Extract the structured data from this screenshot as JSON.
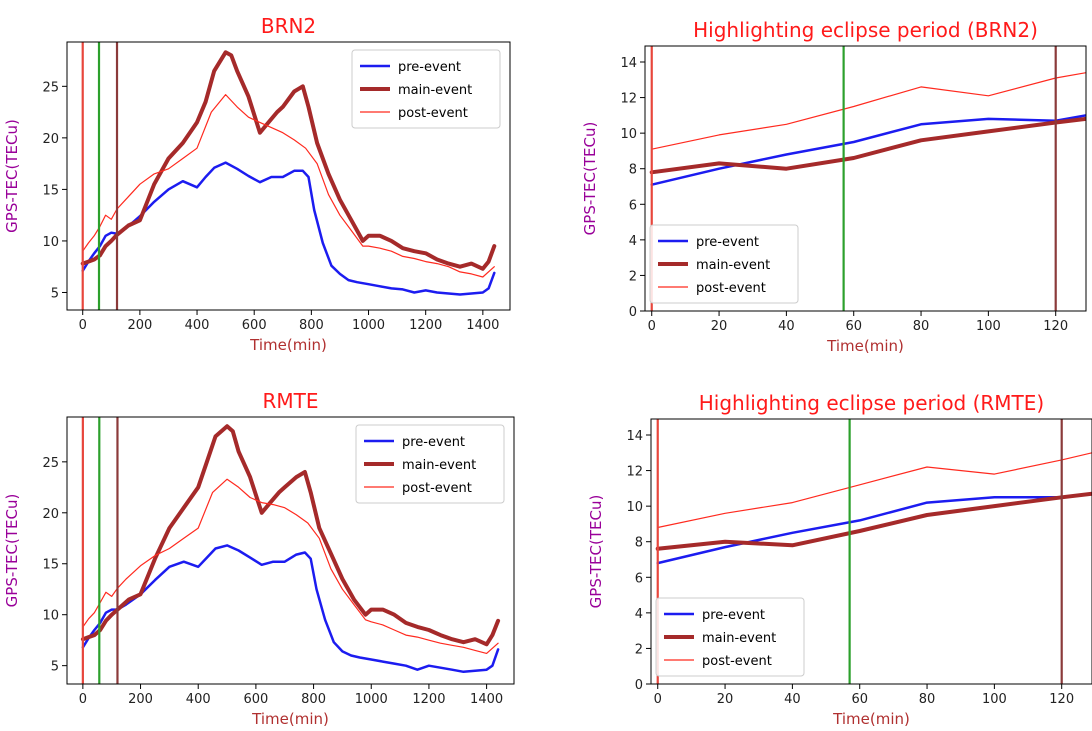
{
  "chart_data": [
    {
      "type": "line",
      "title": "BRN2",
      "xlabel": "Time(min)",
      "ylabel": "GPS-TEC(TECu)",
      "xlim": [
        -55,
        1495
      ],
      "ylim": [
        3.3,
        29.3
      ],
      "xticks": [
        0,
        200,
        400,
        600,
        800,
        1000,
        1200,
        1400
      ],
      "yticks": [
        5,
        10,
        15,
        20,
        25
      ],
      "vlines": [
        {
          "x": 0,
          "color": "#e8463c"
        },
        {
          "x": 57,
          "color": "#2ca02c"
        },
        {
          "x": 120,
          "color": "#8b3a3a"
        }
      ],
      "legend_position": "top-right",
      "series": [
        {
          "name": "pre-event",
          "color": "#1c1cf0",
          "width": 2.5,
          "x": [
            0,
            20,
            40,
            60,
            80,
            100,
            120,
            150,
            200,
            250,
            300,
            350,
            400,
            430,
            460,
            500,
            540,
            580,
            620,
            660,
            700,
            740,
            770,
            790,
            810,
            840,
            870,
            900,
            930,
            960,
            1000,
            1040,
            1080,
            1120,
            1160,
            1200,
            1240,
            1280,
            1320,
            1360,
            1400,
            1420,
            1440
          ],
          "y": [
            7.1,
            8.0,
            8.8,
            9.5,
            10.5,
            10.8,
            10.7,
            11.2,
            12.4,
            13.8,
            15.0,
            15.8,
            15.2,
            16.2,
            17.1,
            17.6,
            17.0,
            16.3,
            15.7,
            16.2,
            16.2,
            16.8,
            16.8,
            16.2,
            13.0,
            9.8,
            7.6,
            6.8,
            6.2,
            6.0,
            5.8,
            5.6,
            5.4,
            5.3,
            5.0,
            5.2,
            5.0,
            4.9,
            4.8,
            4.9,
            5.0,
            5.4,
            6.9
          ]
        },
        {
          "name": "main-event",
          "color": "#a52a2a",
          "width": 4,
          "x": [
            0,
            20,
            40,
            60,
            80,
            100,
            120,
            160,
            200,
            250,
            300,
            350,
            400,
            430,
            460,
            500,
            520,
            540,
            580,
            620,
            650,
            680,
            700,
            740,
            770,
            790,
            820,
            860,
            900,
            940,
            980,
            1000,
            1040,
            1080,
            1120,
            1160,
            1200,
            1240,
            1280,
            1320,
            1360,
            1400,
            1420,
            1440
          ],
          "y": [
            7.8,
            8.0,
            8.2,
            8.6,
            9.5,
            10.0,
            10.6,
            11.5,
            12.0,
            15.5,
            18.0,
            19.5,
            21.5,
            23.5,
            26.5,
            28.3,
            28.0,
            26.5,
            24.0,
            20.5,
            21.5,
            22.5,
            23.0,
            24.5,
            25.0,
            23.0,
            19.5,
            16.5,
            14.0,
            12.0,
            10.0,
            10.5,
            10.5,
            10.0,
            9.3,
            9.0,
            8.8,
            8.2,
            7.8,
            7.5,
            7.8,
            7.3,
            8.0,
            9.5
          ]
        },
        {
          "name": "post-event",
          "color": "#ff2a1f",
          "width": 1.2,
          "x": [
            0,
            20,
            40,
            60,
            80,
            100,
            120,
            150,
            200,
            250,
            300,
            350,
            400,
            450,
            500,
            540,
            580,
            620,
            660,
            700,
            740,
            780,
            820,
            860,
            900,
            940,
            980,
            1000,
            1040,
            1080,
            1120,
            1160,
            1200,
            1240,
            1280,
            1320,
            1360,
            1400,
            1440
          ],
          "y": [
            9.0,
            9.8,
            10.5,
            11.4,
            12.5,
            12.1,
            13.1,
            14.0,
            15.5,
            16.5,
            17.0,
            18.0,
            19.0,
            22.5,
            24.2,
            23.0,
            22.0,
            21.5,
            21.0,
            20.5,
            19.8,
            19.0,
            17.5,
            14.5,
            12.5,
            11.0,
            9.5,
            9.5,
            9.3,
            9.0,
            8.5,
            8.3,
            8.0,
            7.8,
            7.5,
            7.0,
            6.8,
            6.5,
            7.5
          ]
        }
      ]
    },
    {
      "type": "line",
      "title": "Highlighting eclipse period (BRN2)",
      "xlabel": "Time(min)",
      "ylabel": "GPS-TEC(TECu)",
      "xlim": [
        -2,
        129
      ],
      "ylim": [
        0,
        14.9
      ],
      "xticks": [
        0,
        20,
        40,
        60,
        80,
        100,
        120
      ],
      "yticks": [
        0,
        2,
        4,
        6,
        8,
        10,
        12,
        14
      ],
      "vlines": [
        {
          "x": 0,
          "color": "#e8463c"
        },
        {
          "x": 57,
          "color": "#2ca02c"
        },
        {
          "x": 120,
          "color": "#8b3a3a"
        }
      ],
      "legend_position": "bottom-left",
      "series": [
        {
          "name": "pre-event",
          "color": "#1c1cf0",
          "width": 2.5,
          "x": [
            0,
            20,
            40,
            60,
            80,
            100,
            120,
            129
          ],
          "y": [
            7.1,
            8.0,
            8.8,
            9.5,
            10.5,
            10.8,
            10.7,
            11.0
          ]
        },
        {
          "name": "main-event",
          "color": "#a52a2a",
          "width": 4,
          "x": [
            0,
            20,
            40,
            60,
            80,
            100,
            120,
            129
          ],
          "y": [
            7.8,
            8.3,
            8.0,
            8.6,
            9.6,
            10.1,
            10.6,
            10.8
          ]
        },
        {
          "name": "post-event",
          "color": "#ff2a1f",
          "width": 1.2,
          "x": [
            0,
            20,
            40,
            60,
            80,
            100,
            120,
            129
          ],
          "y": [
            9.1,
            9.9,
            10.5,
            11.5,
            12.6,
            12.1,
            13.1,
            13.4
          ]
        }
      ]
    },
    {
      "type": "line",
      "title": "RMTE",
      "xlabel": "Time(min)",
      "ylabel": "GPS-TEC(TECu)",
      "xlim": [
        -55,
        1495
      ],
      "ylim": [
        3.2,
        29.4
      ],
      "xticks": [
        0,
        200,
        400,
        600,
        800,
        1000,
        1200,
        1400
      ],
      "yticks": [
        5,
        10,
        15,
        20,
        25
      ],
      "vlines": [
        {
          "x": 0,
          "color": "#e8463c"
        },
        {
          "x": 57,
          "color": "#2ca02c"
        },
        {
          "x": 120,
          "color": "#8b3a3a"
        }
      ],
      "legend_position": "top-right",
      "series": [
        {
          "name": "pre-event",
          "color": "#1c1cf0",
          "width": 2.5,
          "x": [
            0,
            20,
            40,
            60,
            80,
            100,
            120,
            150,
            200,
            250,
            300,
            350,
            400,
            430,
            460,
            500,
            540,
            580,
            620,
            660,
            700,
            740,
            770,
            790,
            810,
            840,
            870,
            900,
            930,
            960,
            1000,
            1040,
            1080,
            1120,
            1160,
            1200,
            1240,
            1280,
            1320,
            1360,
            1400,
            1420,
            1440
          ],
          "y": [
            6.8,
            7.7,
            8.5,
            9.2,
            10.2,
            10.5,
            10.5,
            11.0,
            12.0,
            13.4,
            14.7,
            15.2,
            14.7,
            15.6,
            16.5,
            16.8,
            16.3,
            15.6,
            14.9,
            15.2,
            15.2,
            15.9,
            16.1,
            15.5,
            12.5,
            9.5,
            7.3,
            6.4,
            6.0,
            5.8,
            5.6,
            5.4,
            5.2,
            5.0,
            4.6,
            5.0,
            4.8,
            4.6,
            4.4,
            4.5,
            4.6,
            5.0,
            6.6
          ]
        },
        {
          "name": "main-event",
          "color": "#a52a2a",
          "width": 4,
          "x": [
            0,
            20,
            40,
            60,
            80,
            100,
            120,
            160,
            200,
            250,
            300,
            350,
            400,
            430,
            460,
            500,
            520,
            540,
            580,
            620,
            650,
            680,
            700,
            740,
            770,
            790,
            820,
            860,
            900,
            940,
            980,
            1000,
            1040,
            1080,
            1120,
            1160,
            1200,
            1240,
            1280,
            1320,
            1360,
            1400,
            1420,
            1440
          ],
          "y": [
            7.6,
            7.8,
            8.0,
            8.5,
            9.4,
            10.0,
            10.5,
            11.5,
            12.0,
            15.5,
            18.5,
            20.5,
            22.5,
            25.0,
            27.5,
            28.5,
            28.0,
            26.0,
            23.5,
            20.0,
            21.0,
            22.0,
            22.5,
            23.5,
            24.0,
            22.0,
            18.5,
            16.0,
            13.5,
            11.5,
            10.0,
            10.5,
            10.5,
            10.0,
            9.2,
            8.8,
            8.5,
            8.0,
            7.6,
            7.3,
            7.6,
            7.1,
            8.0,
            9.4
          ]
        },
        {
          "name": "post-event",
          "color": "#ff2a1f",
          "width": 1.2,
          "x": [
            0,
            20,
            40,
            60,
            80,
            100,
            120,
            150,
            200,
            250,
            300,
            350,
            400,
            450,
            500,
            540,
            580,
            620,
            660,
            700,
            740,
            780,
            820,
            860,
            900,
            940,
            980,
            1000,
            1040,
            1080,
            1120,
            1160,
            1200,
            1240,
            1280,
            1320,
            1360,
            1400,
            1440
          ],
          "y": [
            8.8,
            9.6,
            10.2,
            11.2,
            12.2,
            11.8,
            12.6,
            13.5,
            14.8,
            15.8,
            16.5,
            17.5,
            18.5,
            22.0,
            23.3,
            22.5,
            21.5,
            21.0,
            20.8,
            20.5,
            19.8,
            19.0,
            17.5,
            14.5,
            12.5,
            11.0,
            9.5,
            9.3,
            9.0,
            8.5,
            8.0,
            7.8,
            7.5,
            7.2,
            7.0,
            6.8,
            6.5,
            6.2,
            7.2
          ]
        }
      ]
    },
    {
      "type": "line",
      "title": "Highlighting eclipse period (RMTE)",
      "xlabel": "Time(min)",
      "ylabel": "GPS-TEC(TECu)",
      "xlim": [
        -2,
        129
      ],
      "ylim": [
        0,
        14.9
      ],
      "xticks": [
        0,
        20,
        40,
        60,
        80,
        100,
        120
      ],
      "yticks": [
        0,
        2,
        4,
        6,
        8,
        10,
        12,
        14
      ],
      "vlines": [
        {
          "x": 0,
          "color": "#e8463c"
        },
        {
          "x": 57,
          "color": "#2ca02c"
        },
        {
          "x": 120,
          "color": "#8b3a3a"
        }
      ],
      "legend_position": "bottom-left",
      "series": [
        {
          "name": "pre-event",
          "color": "#1c1cf0",
          "width": 2.5,
          "x": [
            0,
            20,
            40,
            60,
            80,
            100,
            120,
            129
          ],
          "y": [
            6.8,
            7.7,
            8.5,
            9.2,
            10.2,
            10.5,
            10.5,
            10.7
          ]
        },
        {
          "name": "main-event",
          "color": "#a52a2a",
          "width": 4,
          "x": [
            0,
            20,
            40,
            60,
            80,
            100,
            120,
            129
          ],
          "y": [
            7.6,
            8.0,
            7.8,
            8.6,
            9.5,
            10.0,
            10.5,
            10.7
          ]
        },
        {
          "name": "post-event",
          "color": "#ff2a1f",
          "width": 1.2,
          "x": [
            0,
            20,
            40,
            60,
            80,
            100,
            120,
            129
          ],
          "y": [
            8.8,
            9.6,
            10.2,
            11.2,
            12.2,
            11.8,
            12.6,
            13.0
          ]
        }
      ]
    }
  ]
}
